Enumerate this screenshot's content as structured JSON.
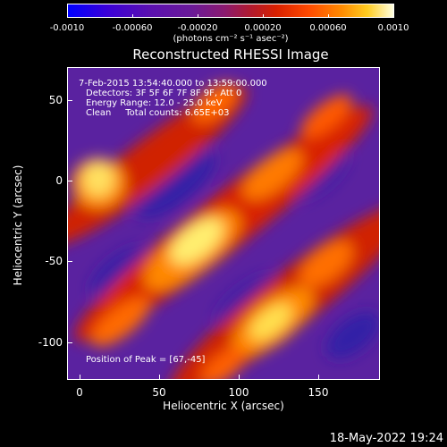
{
  "colorbar": {
    "labels": [
      "-0.0010",
      "-0.00060",
      "-0.00020",
      "0.00020",
      "0.00060",
      "0.0010"
    ],
    "units": "(photons cm⁻² s⁻¹ asec⁻²)"
  },
  "title": "Reconstructed RHESSI Image",
  "info": {
    "time_range": "7-Feb-2015 13:54:40.000 to 13:59:00.000",
    "detectors": "Detectors: 3F 5F 6F 7F 8F 9F, Att 0",
    "energy": "Energy Range: 12.0 - 25.0 keV",
    "clean": "Clean     Total counts: 6.65E+03",
    "peak": "Position of Peak = [67,-45]"
  },
  "y_axis": {
    "title": "Heliocentric Y (arcsec)",
    "ticks": [
      "50",
      "0",
      "-50",
      "-100"
    ]
  },
  "x_axis": {
    "title": "Heliocentric X (arcsec)",
    "ticks": [
      "0",
      "50",
      "100",
      "150"
    ]
  },
  "datestamp": "18-May-2022 19:24"
}
